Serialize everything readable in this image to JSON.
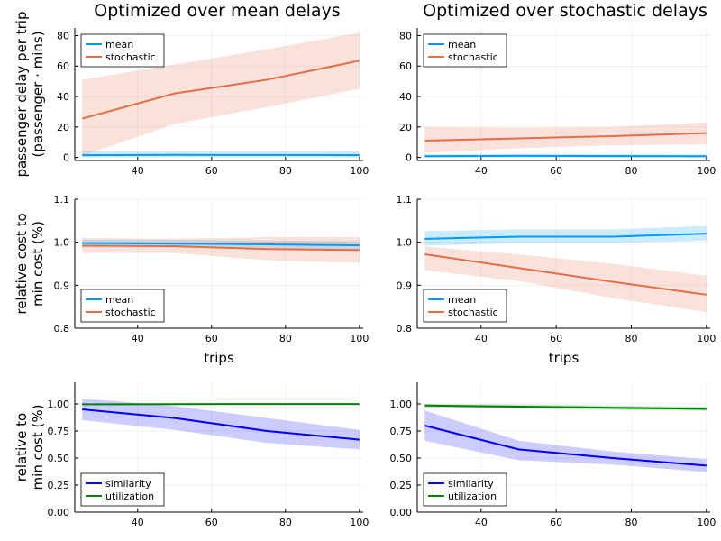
{
  "colors": {
    "mean": "#009af9",
    "stochastic": "#e26f46",
    "similarity": "#0000ff",
    "utilization": "#008000"
  },
  "chart_data": [
    {
      "type": "line",
      "title": "Optimized over mean delays",
      "xlabel": "",
      "ylabel": [
        "passenger delay per trip",
        "(passenger · mins)"
      ],
      "xlim": [
        23,
        101
      ],
      "ylim": [
        -2,
        85
      ],
      "xticks": [
        40,
        60,
        80,
        100
      ],
      "yticks": [
        0,
        20,
        40,
        60,
        80
      ],
      "ytick_labels": [
        "0",
        "20",
        "40",
        "60",
        "80"
      ],
      "legend": "top-left",
      "grid": true,
      "x": [
        25,
        50,
        75,
        100
      ],
      "series": [
        {
          "name": "mean",
          "color_key": "mean",
          "values": [
            1.5,
            1.7,
            1.6,
            1.5
          ],
          "lower": [
            0.2,
            0.3,
            0.3,
            0.2
          ],
          "upper": [
            4,
            4,
            4,
            4
          ]
        },
        {
          "name": "stochastic",
          "color_key": "stochastic",
          "values": [
            25.5,
            42,
            51,
            63.5
          ],
          "lower": [
            1,
            22,
            33,
            45
          ],
          "upper": [
            51,
            61,
            71,
            82
          ]
        }
      ]
    },
    {
      "type": "line",
      "title": "Optimized over stochastic delays",
      "xlabel": "",
      "ylabel": "",
      "xlim": [
        23,
        101
      ],
      "ylim": [
        -2,
        85
      ],
      "xticks": [
        40,
        60,
        80,
        100
      ],
      "yticks": [
        0,
        20,
        40,
        60,
        80
      ],
      "ytick_labels": [
        "0",
        "20",
        "40",
        "60",
        "80"
      ],
      "legend": "top-left",
      "grid": true,
      "x": [
        25,
        50,
        75,
        100
      ],
      "series": [
        {
          "name": "mean",
          "color_key": "mean",
          "values": [
            0.8,
            1.0,
            0.9,
            0.8
          ],
          "lower": [
            0.1,
            0.2,
            0.2,
            0.1
          ],
          "upper": [
            2,
            2.5,
            2.3,
            2
          ]
        },
        {
          "name": "stochastic",
          "color_key": "stochastic",
          "values": [
            11,
            12.5,
            14,
            16
          ],
          "lower": [
            3,
            6,
            8,
            8.5
          ],
          "upper": [
            20,
            19.5,
            20,
            23
          ]
        }
      ]
    },
    {
      "type": "line",
      "title": "",
      "xlabel": "trips",
      "ylabel": [
        "relative cost to",
        "min cost (%)"
      ],
      "xlim": [
        23,
        101
      ],
      "ylim": [
        0.8,
        1.1
      ],
      "xticks": [
        40,
        60,
        80,
        100
      ],
      "yticks": [
        0.8,
        0.9,
        1.0,
        1.1
      ],
      "ytick_labels": [
        "0.8",
        "0.9",
        "1.0",
        "1.1"
      ],
      "legend": "bottom-left",
      "grid": true,
      "x": [
        25,
        50,
        75,
        100
      ],
      "series": [
        {
          "name": "mean",
          "color_key": "mean",
          "values": [
            0.998,
            0.997,
            0.995,
            0.993
          ],
          "lower": [
            0.988,
            0.987,
            0.985,
            0.983
          ],
          "upper": [
            1.006,
            1.006,
            1.004,
            1.002
          ]
        },
        {
          "name": "stochastic",
          "color_key": "stochastic",
          "values": [
            0.992,
            0.991,
            0.984,
            0.982
          ],
          "lower": [
            0.975,
            0.975,
            0.958,
            0.952
          ],
          "upper": [
            1.01,
            1.008,
            1.012,
            1.012
          ]
        }
      ]
    },
    {
      "type": "line",
      "title": "",
      "xlabel": "trips",
      "ylabel": "",
      "xlim": [
        23,
        101
      ],
      "ylim": [
        0.8,
        1.1
      ],
      "xticks": [
        40,
        60,
        80,
        100
      ],
      "yticks": [
        0.8,
        0.9,
        1.0,
        1.1
      ],
      "ytick_labels": [
        "0.8",
        "0.9",
        "1.0",
        "1.1"
      ],
      "legend": "bottom-left",
      "grid": true,
      "x": [
        25,
        50,
        75,
        100
      ],
      "series": [
        {
          "name": "mean",
          "color_key": "mean",
          "values": [
            1.008,
            1.013,
            1.013,
            1.02
          ],
          "lower": [
            0.992,
            0.998,
            0.998,
            1.004
          ],
          "upper": [
            1.026,
            1.03,
            1.03,
            1.038
          ]
        },
        {
          "name": "stochastic",
          "color_key": "stochastic",
          "values": [
            0.972,
            0.94,
            0.908,
            0.878
          ],
          "lower": [
            0.935,
            0.91,
            0.87,
            0.838
          ],
          "upper": [
            0.99,
            0.972,
            0.95,
            0.922
          ]
        }
      ]
    },
    {
      "type": "line",
      "title": "",
      "xlabel": "",
      "ylabel": [
        "relative to",
        "min cost (%)"
      ],
      "xlim": [
        23,
        101
      ],
      "ylim": [
        0,
        1.2
      ],
      "xticks": [
        40,
        60,
        80,
        100
      ],
      "yticks": [
        0,
        0.25,
        0.5,
        0.75,
        1.0
      ],
      "ytick_labels": [
        "0.00",
        "0.25",
        "0.50",
        "0.75",
        "1.00"
      ],
      "legend": "bottom-left",
      "grid": true,
      "x": [
        25,
        50,
        75,
        100
      ],
      "series": [
        {
          "name": "similarity",
          "color_key": "similarity",
          "values": [
            0.95,
            0.87,
            0.75,
            0.67
          ],
          "lower": [
            0.85,
            0.76,
            0.64,
            0.58
          ],
          "upper": [
            1.05,
            0.98,
            0.87,
            0.76
          ]
        },
        {
          "name": "utilization",
          "color_key": "utilization",
          "values": [
            0.997,
            0.998,
            0.999,
            0.999
          ],
          "lower": [
            0.99,
            0.995,
            0.997,
            0.997
          ],
          "upper": [
            1.004,
            1.002,
            1.001,
            1.001
          ]
        }
      ]
    },
    {
      "type": "line",
      "title": "",
      "xlabel": "",
      "ylabel": "",
      "xlim": [
        23,
        101
      ],
      "ylim": [
        0,
        1.2
      ],
      "xticks": [
        40,
        60,
        80,
        100
      ],
      "yticks": [
        0,
        0.25,
        0.5,
        0.75,
        1.0
      ],
      "ytick_labels": [
        "0.00",
        "0.25",
        "0.50",
        "0.75",
        "1.00"
      ],
      "legend": "bottom-left",
      "grid": true,
      "x": [
        25,
        50,
        75,
        100
      ],
      "series": [
        {
          "name": "similarity",
          "color_key": "similarity",
          "values": [
            0.8,
            0.58,
            0.5,
            0.43
          ],
          "lower": [
            0.66,
            0.48,
            0.44,
            0.37
          ],
          "upper": [
            0.94,
            0.66,
            0.56,
            0.49
          ]
        },
        {
          "name": "utilization",
          "color_key": "utilization",
          "values": [
            0.985,
            0.975,
            0.965,
            0.955
          ],
          "lower": [
            0.965,
            0.955,
            0.945,
            0.935
          ],
          "upper": [
            1.0,
            0.995,
            0.985,
            0.975
          ]
        }
      ]
    }
  ]
}
